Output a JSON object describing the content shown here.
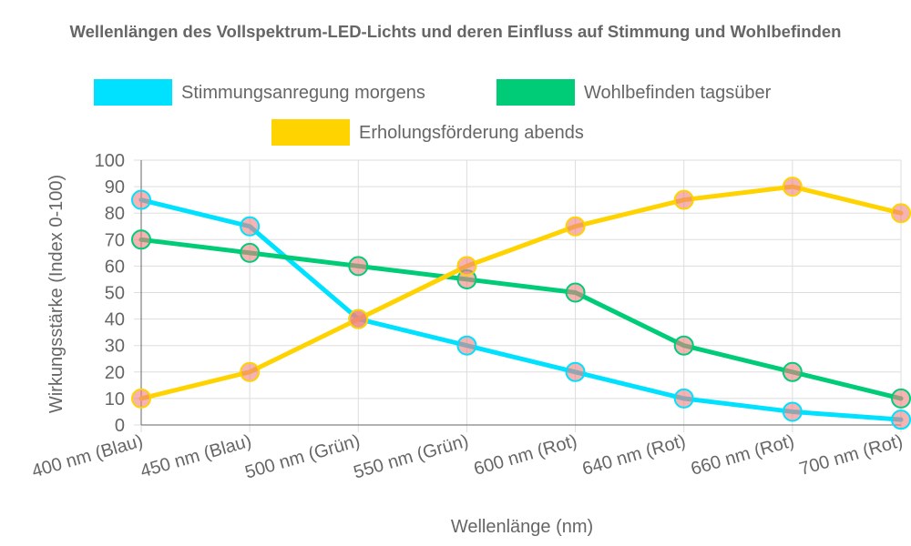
{
  "chart_data": {
    "type": "line",
    "title": "Wellenlängen des Vollspektrum-LED-Lichts und deren Einfluss auf Stimmung und Wohlbefinden",
    "xlabel": "Wellenlänge (nm)",
    "ylabel": "Wirkungsstärke (Index 0-100)",
    "categories": [
      "400 nm (Blau)",
      "450 nm (Blau)",
      "500 nm (Grün)",
      "550 nm (Grün)",
      "600 nm (Rot)",
      "640 nm (Rot)",
      "660 nm (Rot)",
      "700 nm (Rot)"
    ],
    "ylim": [
      0,
      100
    ],
    "yticks": [
      "0",
      "10",
      "20",
      "30",
      "40",
      "50",
      "60",
      "70",
      "80",
      "90",
      "100"
    ],
    "grid": true,
    "legend_position": "top",
    "series": [
      {
        "name": "Stimmungsanregung morgens",
        "color": "#00e1ff",
        "values": [
          85,
          75,
          40,
          30,
          20,
          10,
          5,
          2
        ]
      },
      {
        "name": "Wohlbefinden tagsüber",
        "color": "#00cc77",
        "values": [
          70,
          65,
          60,
          55,
          50,
          30,
          20,
          10
        ]
      },
      {
        "name": "Erholungsförderung abends",
        "color": "#ffd300",
        "values": [
          10,
          20,
          40,
          60,
          75,
          85,
          90,
          80
        ]
      }
    ]
  }
}
